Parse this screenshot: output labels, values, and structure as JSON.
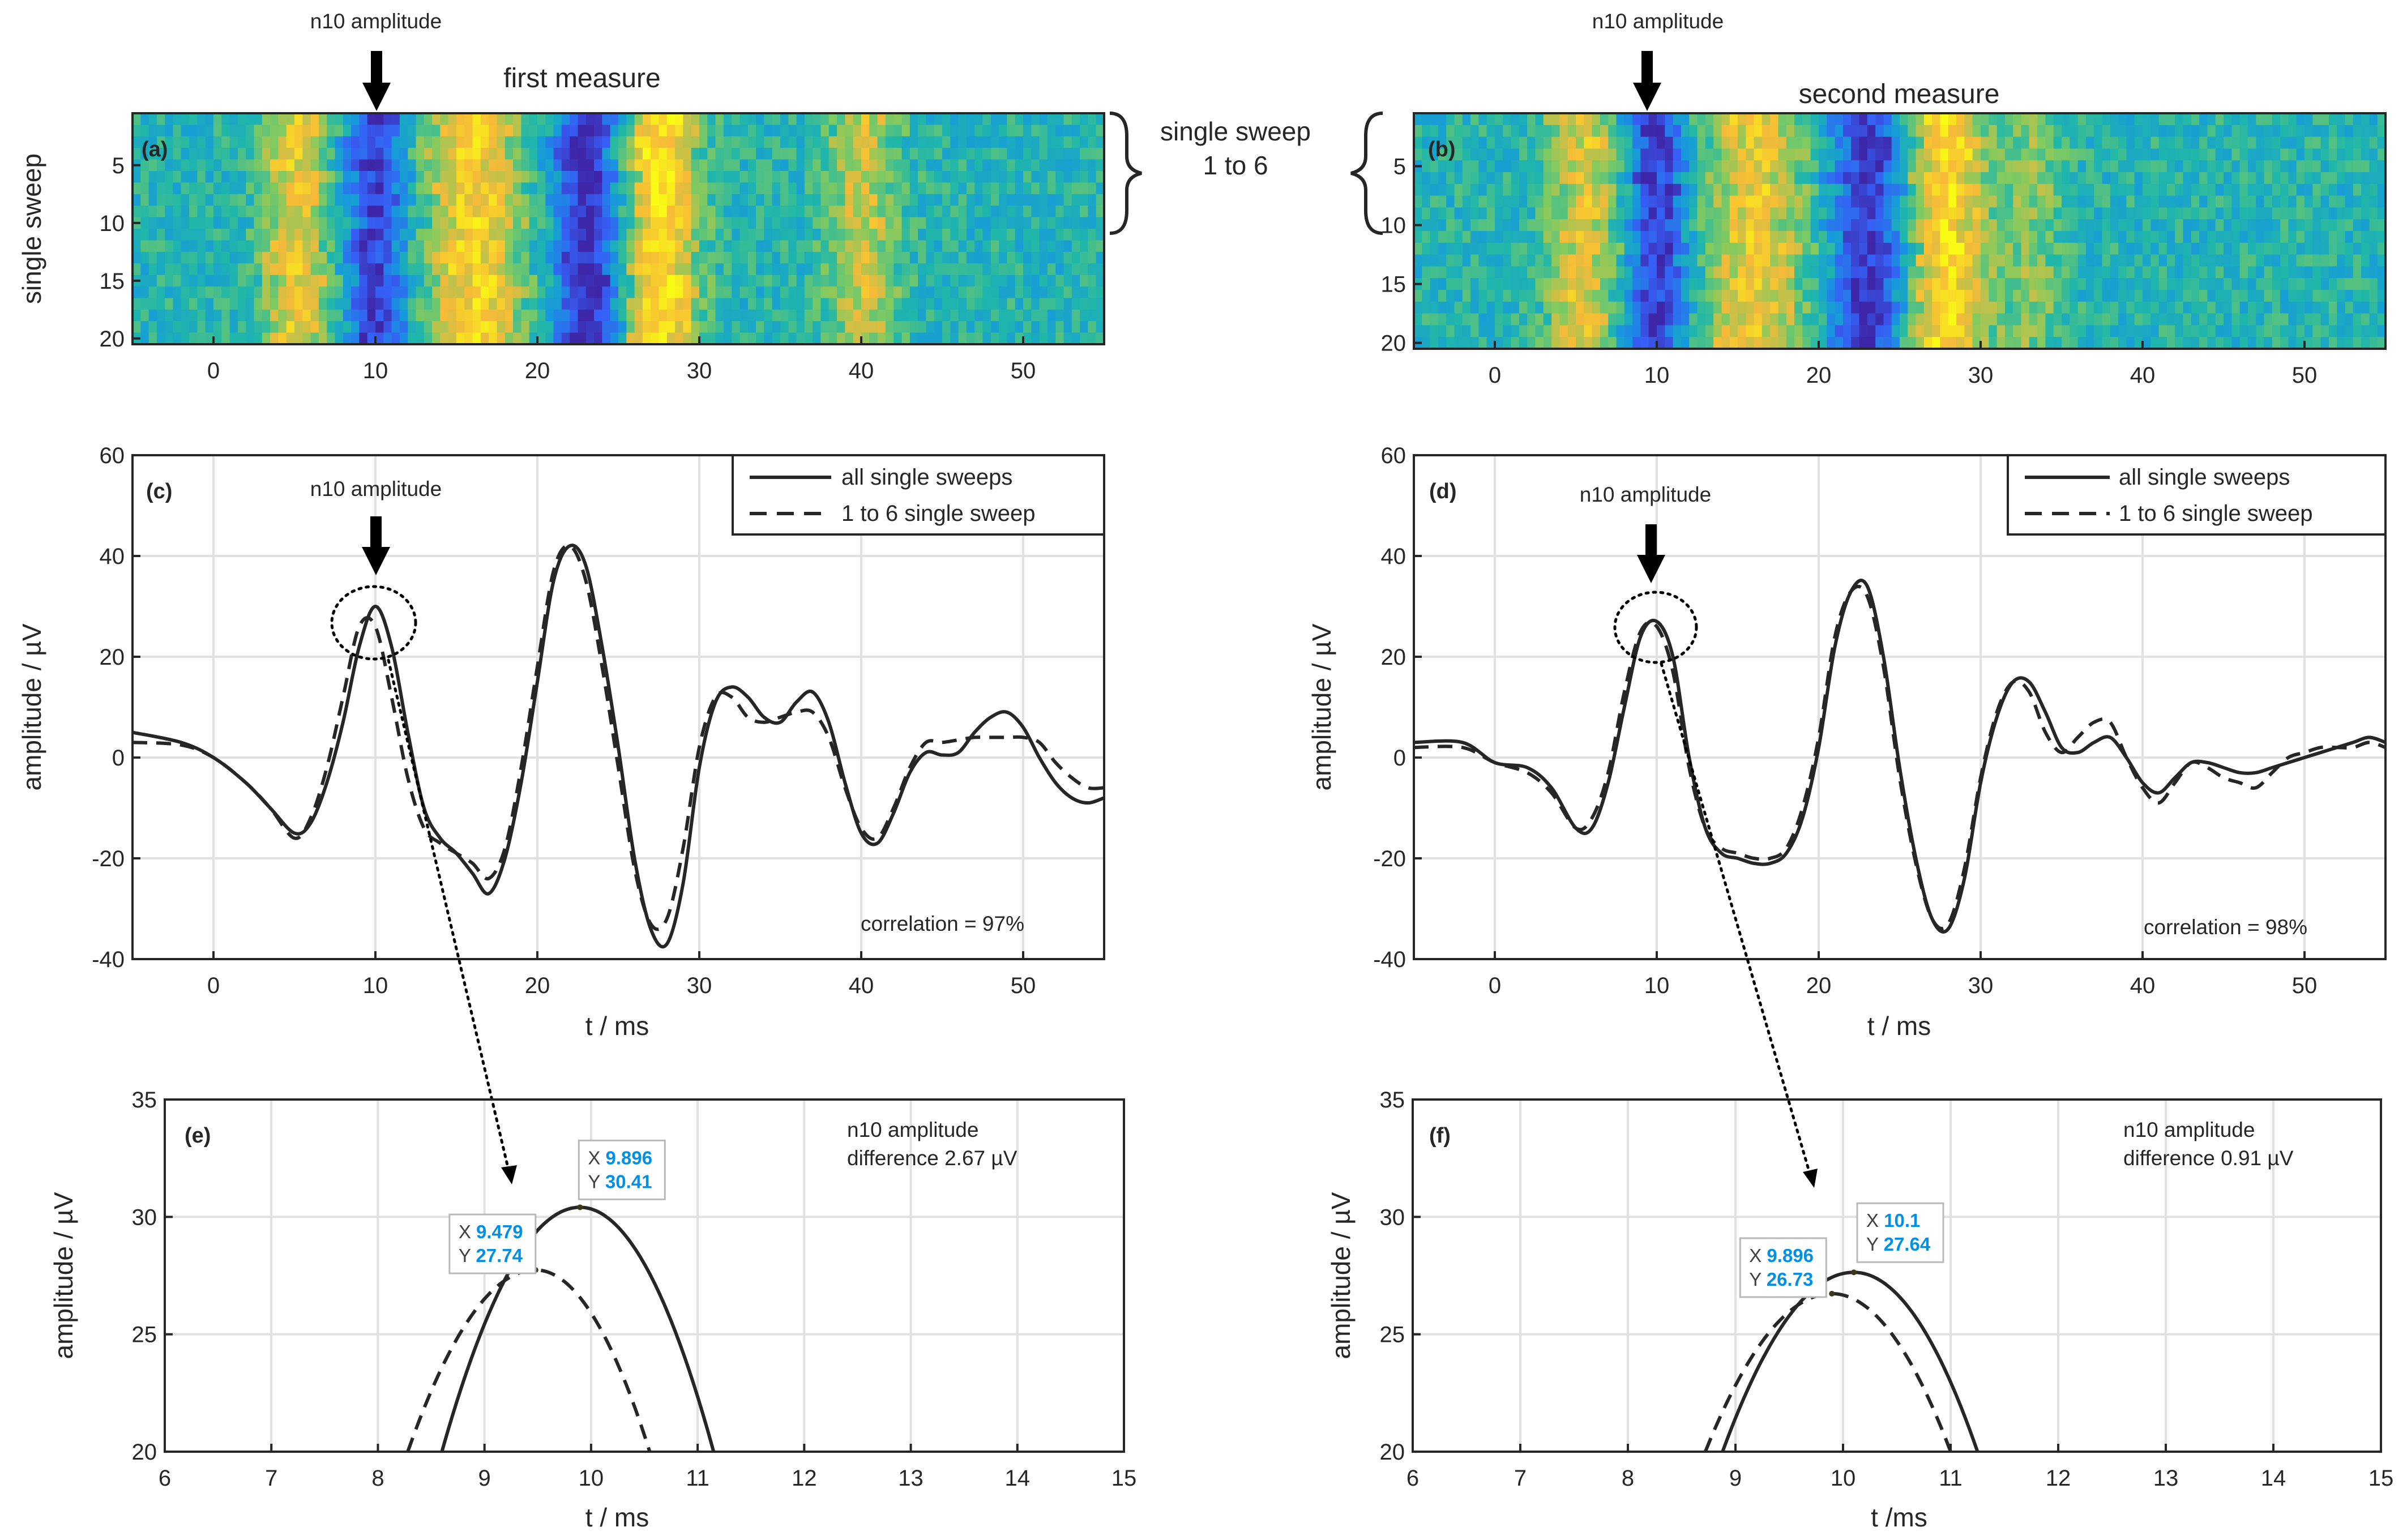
{
  "figure": {
    "top_left": {
      "arrow_label": "n10 amplitude",
      "title": "first measure",
      "ylabel": "single sweep",
      "brace_label": [
        "single sweep",
        "1 to 6"
      ]
    },
    "top_right": {
      "arrow_label": "n10 amplitude",
      "title": "second measure"
    },
    "colors": {
      "solid": "#262626",
      "dashed": "#262626",
      "datatip_value": "#0091e6",
      "grid": "#e1e1e1"
    }
  },
  "chart_data": [
    {
      "id": "a",
      "panel_label": "(a)",
      "type": "heatmap",
      "title": "first measure",
      "ylabel": "single sweep",
      "xlim": [
        -5,
        55
      ],
      "ylim": [
        0.5,
        20.5
      ],
      "xticks": [
        0,
        10,
        20,
        30,
        40,
        50
      ],
      "yticks": [
        5,
        10,
        15,
        20
      ],
      "colormap": "parula",
      "feature_bands_ms": [
        {
          "t": 5.0,
          "w": 1.5,
          "level": 0.7
        },
        {
          "t": 10.0,
          "w": 1.3,
          "level": -0.85
        },
        {
          "t": 16.0,
          "w": 2.2,
          "level": 0.8
        },
        {
          "t": 23.0,
          "w": 1.5,
          "level": -0.95
        },
        {
          "t": 27.5,
          "w": 1.6,
          "level": 0.95
        },
        {
          "t": 40.0,
          "w": 1.5,
          "level": 0.55
        }
      ]
    },
    {
      "id": "b",
      "panel_label": "(b)",
      "type": "heatmap",
      "title": "second measure",
      "ylabel": "",
      "xlim": [
        -5,
        55
      ],
      "ylim": [
        0.5,
        20.5
      ],
      "xticks": [
        0,
        10,
        20,
        30,
        40,
        50
      ],
      "yticks": [
        5,
        10,
        15,
        20
      ],
      "colormap": "parula",
      "feature_bands_ms": [
        {
          "t": 5.5,
          "w": 1.5,
          "level": 0.65
        },
        {
          "t": 10.0,
          "w": 1.3,
          "level": -0.85
        },
        {
          "t": 16.0,
          "w": 2.2,
          "level": 0.7
        },
        {
          "t": 23.0,
          "w": 1.5,
          "level": -0.9
        },
        {
          "t": 28.0,
          "w": 1.6,
          "level": 0.9
        },
        {
          "t": 33.0,
          "w": 1.4,
          "level": 0.35
        }
      ]
    },
    {
      "id": "c",
      "panel_label": "(c)",
      "type": "line",
      "xlabel": "t / ms",
      "ylabel": "amplitude / µV",
      "xlim": [
        -5,
        55
      ],
      "ylim": [
        -40,
        60
      ],
      "xticks": [
        0,
        10,
        20,
        30,
        40,
        50
      ],
      "yticks": [
        -40,
        -20,
        0,
        20,
        40,
        60
      ],
      "arrow_label": "n10 amplitude",
      "annotation": "correlation = 97%",
      "legend": {
        "location": "top-right",
        "entries": [
          "all single sweeps",
          "1 to 6 single sweep"
        ]
      },
      "series": [
        {
          "name": "all single sweeps",
          "style": "solid",
          "x": [
            -5,
            -2,
            0,
            2,
            3.5,
            5,
            6,
            7,
            8,
            9,
            10,
            11,
            12,
            13,
            14,
            15,
            16,
            17,
            18,
            19,
            20,
            21,
            22,
            23,
            24,
            25,
            26,
            27,
            28,
            29,
            30,
            31,
            32,
            33,
            34,
            35,
            36,
            37,
            38,
            39,
            40,
            41,
            42,
            43,
            44,
            45,
            46,
            47,
            48,
            49,
            50,
            51,
            52,
            53,
            54,
            55
          ],
          "y": [
            5,
            3,
            0,
            -5,
            -10,
            -15,
            -13,
            -5,
            7,
            22,
            30,
            22,
            5,
            -10,
            -16,
            -19,
            -23,
            -27,
            -20,
            -5,
            15,
            35,
            42,
            38,
            22,
            2,
            -20,
            -34,
            -37,
            -25,
            -2,
            11,
            14,
            12,
            8,
            7,
            11,
            13,
            7,
            -5,
            -15,
            -17,
            -11,
            -3,
            1,
            0.5,
            1,
            5,
            8,
            9,
            6,
            0,
            -5,
            -8,
            -9,
            -8
          ]
        },
        {
          "name": "1 to 6 single sweep",
          "style": "dashed",
          "x": [
            -5,
            -2,
            0,
            2,
            3.5,
            5,
            6,
            7,
            8,
            9,
            10,
            11,
            12,
            13,
            14,
            15,
            16,
            17,
            18,
            19,
            20,
            21,
            22,
            23,
            24,
            25,
            26,
            27,
            28,
            29,
            30,
            31,
            32,
            33,
            34,
            35,
            36,
            37,
            38,
            39,
            40,
            41,
            42,
            43,
            44,
            45,
            46,
            47,
            48,
            49,
            50,
            51,
            52,
            53,
            54,
            55
          ],
          "y": [
            3,
            2.5,
            0,
            -5,
            -10,
            -16,
            -12,
            -2,
            12,
            26,
            26,
            12,
            -4,
            -14,
            -17,
            -19,
            -21,
            -24,
            -18,
            -2,
            18,
            37,
            42,
            35,
            18,
            -2,
            -22,
            -33,
            -32,
            -18,
            2,
            12,
            12,
            8,
            7,
            8,
            9,
            9,
            4,
            -6,
            -14,
            -16,
            -10,
            -2,
            3,
            3,
            3.5,
            4,
            4,
            4,
            4,
            3,
            -1,
            -4,
            -6,
            -6
          ]
        }
      ]
    },
    {
      "id": "d",
      "panel_label": "(d)",
      "type": "line",
      "xlabel": "t / ms",
      "ylabel": "amplitude / µV",
      "xlim": [
        -5,
        55
      ],
      "ylim": [
        -40,
        60
      ],
      "xticks": [
        0,
        10,
        20,
        30,
        40,
        50
      ],
      "yticks": [
        -40,
        -20,
        0,
        20,
        40,
        60
      ],
      "arrow_label": "n10 amplitude",
      "annotation": "correlation = 98%",
      "legend": {
        "location": "top-right",
        "entries": [
          "all single sweeps",
          "1 to 6 single sweep"
        ]
      },
      "series": [
        {
          "name": "all single sweeps",
          "style": "solid",
          "x": [
            -5,
            -2,
            0,
            2,
            3.5,
            5,
            6,
            7,
            8,
            9,
            10,
            11,
            12,
            13,
            14,
            15,
            16,
            17,
            18,
            19,
            20,
            21,
            22,
            23,
            24,
            25,
            26,
            27,
            28,
            29,
            30,
            31,
            32,
            33,
            34,
            35,
            36,
            37,
            38,
            39,
            40,
            41,
            42,
            43,
            44,
            45,
            46,
            47,
            48,
            49,
            50,
            51,
            52,
            53,
            54,
            55
          ],
          "y": [
            3,
            3,
            -1,
            -2,
            -6,
            -14,
            -14,
            -5,
            10,
            24,
            27,
            20,
            0,
            -14,
            -19,
            -20,
            -21,
            -21,
            -19,
            -12,
            2,
            22,
            33,
            34,
            20,
            -2,
            -20,
            -32,
            -34,
            -24,
            -5,
            8,
            15,
            15,
            9,
            2,
            1,
            3,
            4,
            0,
            -5,
            -7,
            -4,
            -1,
            -1,
            -2,
            -3,
            -3,
            -2,
            -1,
            0,
            1,
            2,
            3,
            4,
            3
          ]
        },
        {
          "name": "1 to 6 single sweep",
          "style": "dashed",
          "x": [
            -5,
            -2,
            0,
            2,
            3.5,
            5,
            6,
            7,
            8,
            9,
            10,
            11,
            12,
            13,
            14,
            15,
            16,
            17,
            18,
            19,
            20,
            21,
            22,
            23,
            24,
            25,
            26,
            27,
            28,
            29,
            30,
            31,
            32,
            33,
            34,
            35,
            36,
            37,
            38,
            39,
            40,
            41,
            42,
            43,
            44,
            45,
            46,
            47,
            48,
            49,
            50,
            51,
            52,
            53,
            54,
            55
          ],
          "y": [
            2,
            2,
            -1,
            -3,
            -7,
            -14,
            -12,
            -3,
            13,
            25,
            26,
            17,
            -2,
            -14,
            -18,
            -19,
            -20,
            -20,
            -18,
            -10,
            4,
            24,
            33,
            32,
            18,
            -4,
            -21,
            -32,
            -33,
            -22,
            -4,
            9,
            15,
            13,
            5,
            1,
            4,
            7,
            7,
            0,
            -6,
            -9,
            -5,
            -1,
            -2,
            -4,
            -5,
            -6,
            -3,
            0,
            1,
            2,
            2,
            2,
            3,
            2
          ]
        }
      ]
    },
    {
      "id": "e",
      "panel_label": "(e)",
      "type": "line",
      "xlabel": "t / ms",
      "ylabel": "amplitude / µV",
      "xlim": [
        6,
        15
      ],
      "ylim": [
        20,
        35
      ],
      "xticks": [
        6,
        7,
        8,
        9,
        10,
        11,
        12,
        13,
        14,
        15
      ],
      "yticks": [
        20,
        25,
        30,
        35
      ],
      "annotation": [
        "n10 amplitude",
        "difference 2.67 µV"
      ],
      "datatips": [
        {
          "X": "9.896",
          "Y": "30.41"
        },
        {
          "X": "9.479",
          "Y": "27.74"
        }
      ],
      "series": [
        {
          "name": "all single sweeps",
          "style": "solid",
          "peak_x": 9.896,
          "peak_y": 30.41,
          "x": [
            8.6,
            11.15
          ]
        },
        {
          "name": "1 to 6 single sweep",
          "style": "dashed",
          "peak_x": 9.479,
          "peak_y": 27.74,
          "x": [
            8.28,
            10.55
          ]
        }
      ]
    },
    {
      "id": "f",
      "panel_label": "(f)",
      "type": "line",
      "xlabel": "t /ms",
      "ylabel": "amplitude / µV",
      "xlim": [
        6,
        15
      ],
      "ylim": [
        20,
        35
      ],
      "xticks": [
        6,
        7,
        8,
        9,
        10,
        11,
        12,
        13,
        14,
        15
      ],
      "yticks": [
        20,
        25,
        30,
        35
      ],
      "annotation": [
        "n10 amplitude",
        "difference 0.91 µV"
      ],
      "datatips": [
        {
          "X": "10.1",
          "Y": "27.64"
        },
        {
          "X": "9.896",
          "Y": "26.73"
        }
      ],
      "series": [
        {
          "name": "all single sweeps",
          "style": "solid",
          "peak_x": 10.1,
          "peak_y": 27.64,
          "x": [
            8.88,
            11.25
          ]
        },
        {
          "name": "1 to 6 single sweep",
          "style": "dashed",
          "peak_x": 9.896,
          "peak_y": 26.73,
          "x": [
            8.72,
            11.0
          ]
        }
      ]
    }
  ]
}
